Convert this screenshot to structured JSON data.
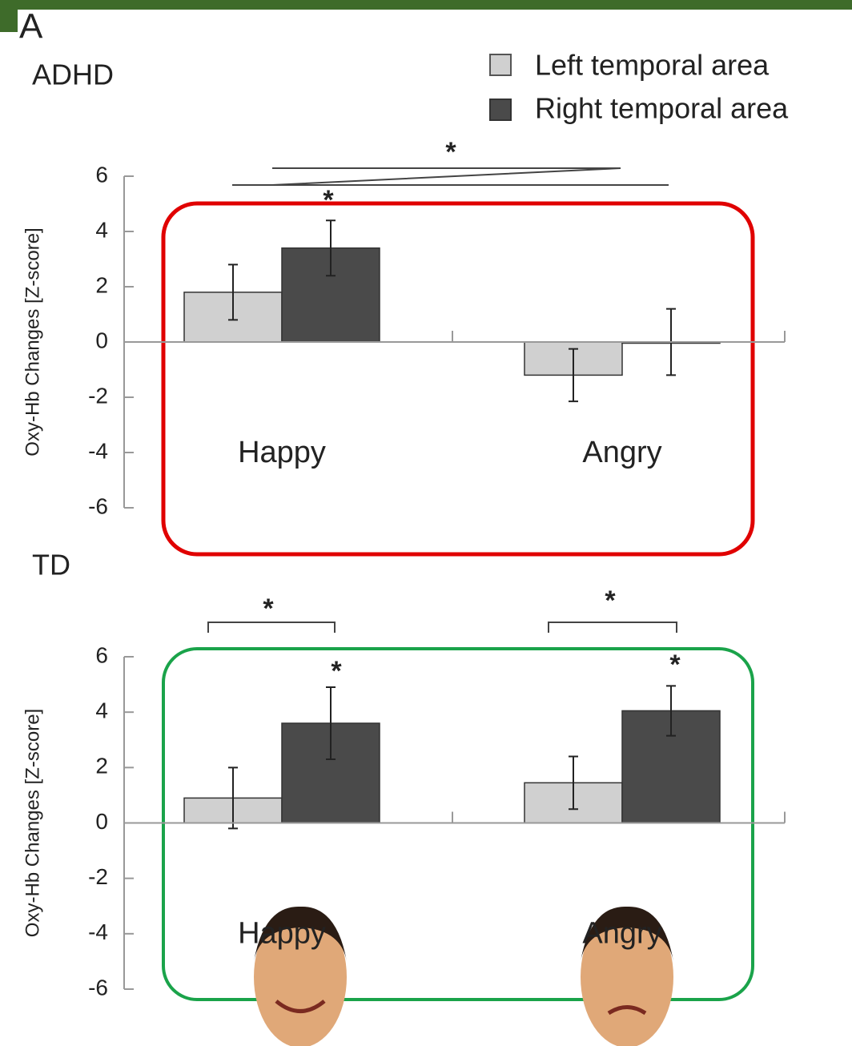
{
  "panel_label": "A",
  "legend_entries": [
    "Left temporal area",
    "Right temporal area"
  ],
  "chart_data": [
    {
      "type": "bar",
      "title": "ADHD",
      "ylabel": "Oxy-Hb Changes  [Z-score]",
      "categories": [
        "Happy",
        "Angry"
      ],
      "series": [
        {
          "name": "Left temporal area",
          "color": "#d0d0d0",
          "values": [
            1.8,
            -1.2
          ],
          "errors": [
            1.0,
            0.95
          ]
        },
        {
          "name": "Right temporal area",
          "color": "#4a4a4a",
          "values": [
            3.4,
            0
          ],
          "errors": [
            1.0,
            1.2
          ]
        }
      ],
      "ylim": [
        -6,
        6
      ],
      "yticks": [
        6,
        4,
        2,
        0,
        -2,
        -4,
        -6
      ],
      "annotations": [
        "*",
        "*"
      ]
    },
    {
      "type": "bar",
      "title": "TD",
      "ylabel": "Oxy-Hb Changes  [Z-score]",
      "categories": [
        "Happy",
        "Angry"
      ],
      "series": [
        {
          "color": "#d0d0d0",
          "values": [
            0.9,
            1.45
          ],
          "errors": [
            1.1,
            0.95
          ]
        },
        {
          "color": "#4a4a4a",
          "values": [
            3.6,
            4.05
          ],
          "errors": [
            1.3,
            0.9
          ]
        }
      ],
      "ylim": [
        -6,
        6
      ],
      "yticks": [
        6,
        4,
        2,
        0,
        -2,
        -4,
        -6
      ],
      "annotations": [
        "*",
        "*",
        "*",
        "*"
      ]
    }
  ]
}
